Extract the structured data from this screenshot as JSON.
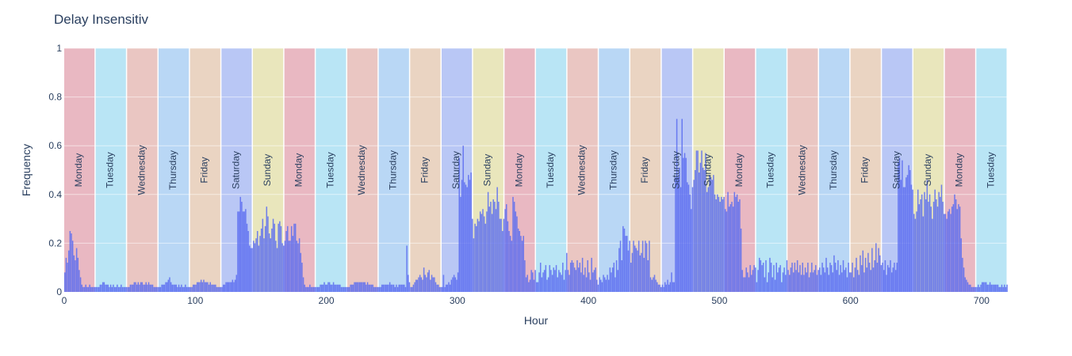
{
  "chart_data": {
    "type": "bar",
    "title": "Delay Insensitiv",
    "xlabel": "Hour",
    "ylabel": "Frequency",
    "xlim": [
      0,
      720
    ],
    "ylim": [
      0,
      1
    ],
    "x_ticks": [
      "0",
      "100",
      "200",
      "300",
      "400",
      "500",
      "600",
      "700"
    ],
    "x_tick_values": [
      0,
      100,
      200,
      300,
      400,
      500,
      600,
      700
    ],
    "y_ticks": [
      "0",
      "0.2",
      "0.4",
      "0.6",
      "0.8",
      "1"
    ],
    "y_tick_values": [
      0,
      0.2,
      0.4,
      0.6,
      0.8,
      1
    ],
    "grid": true,
    "day_bands": [
      {
        "label": "Monday",
        "start": 0,
        "end": 24,
        "color": "#e2a0ae"
      },
      {
        "label": "Tuesday",
        "start": 24,
        "end": 48,
        "color": "#a2dcf2"
      },
      {
        "label": "Wednesday",
        "start": 48,
        "end": 72,
        "color": "#e3b3ad"
      },
      {
        "label": "Thursday",
        "start": 72,
        "end": 96,
        "color": "#a2c9f2"
      },
      {
        "label": "Friday",
        "start": 96,
        "end": 120,
        "color": "#e3c6ad"
      },
      {
        "label": "Saturday",
        "start": 120,
        "end": 144,
        "color": "#a2b4f2"
      },
      {
        "label": "Sunday",
        "start": 144,
        "end": 168,
        "color": "#e2dda6"
      },
      {
        "label": "Monday",
        "start": 168,
        "end": 192,
        "color": "#e2a0ae"
      },
      {
        "label": "Tuesday",
        "start": 192,
        "end": 216,
        "color": "#a2dcf2"
      },
      {
        "label": "Wednesday",
        "start": 216,
        "end": 240,
        "color": "#e3b3ad"
      },
      {
        "label": "Thursday",
        "start": 240,
        "end": 264,
        "color": "#a2c9f2"
      },
      {
        "label": "Friday",
        "start": 264,
        "end": 288,
        "color": "#e3c6ad"
      },
      {
        "label": "Saturday",
        "start": 288,
        "end": 312,
        "color": "#a2b4f2"
      },
      {
        "label": "Sunday",
        "start": 312,
        "end": 336,
        "color": "#e2dda6"
      },
      {
        "label": "Monday",
        "start": 336,
        "end": 360,
        "color": "#e2a0ae"
      },
      {
        "label": "Tuesday",
        "start": 360,
        "end": 384,
        "color": "#a2dcf2"
      },
      {
        "label": "Wednesday",
        "start": 384,
        "end": 408,
        "color": "#e3b3ad"
      },
      {
        "label": "Thursday",
        "start": 408,
        "end": 432,
        "color": "#a2c9f2"
      },
      {
        "label": "Friday",
        "start": 432,
        "end": 456,
        "color": "#e3c6ad"
      },
      {
        "label": "Saturday",
        "start": 456,
        "end": 480,
        "color": "#a2b4f2"
      },
      {
        "label": "Sunday",
        "start": 480,
        "end": 504,
        "color": "#e2dda6"
      },
      {
        "label": "Monday",
        "start": 504,
        "end": 528,
        "color": "#e2a0ae"
      },
      {
        "label": "Tuesday",
        "start": 528,
        "end": 552,
        "color": "#a2dcf2"
      },
      {
        "label": "Wednesday",
        "start": 552,
        "end": 576,
        "color": "#e3b3ad"
      },
      {
        "label": "Thursday",
        "start": 576,
        "end": 600,
        "color": "#a2c9f2"
      },
      {
        "label": "Friday",
        "start": 600,
        "end": 624,
        "color": "#e3c6ad"
      },
      {
        "label": "Saturday",
        "start": 624,
        "end": 648,
        "color": "#a2b4f2"
      },
      {
        "label": "Sunday",
        "start": 648,
        "end": 672,
        "color": "#e2dda6"
      },
      {
        "label": "Monday",
        "start": 672,
        "end": 696,
        "color": "#e2a0ae"
      },
      {
        "label": "Tuesday",
        "start": 696,
        "end": 720,
        "color": "#a2dcf2"
      }
    ],
    "bar_color": "#5a6cf0",
    "series": [
      {
        "values": [
          0.08,
          0.14,
          0.12,
          0.17,
          0.25,
          0.24,
          0.21,
          0.15,
          0.13,
          0.18,
          0.14,
          0.09,
          0.06,
          0.03,
          0.02,
          0.02,
          0.03,
          0.02,
          0.02,
          0.03,
          0.02,
          0.02,
          0.02,
          0.02,
          0.02,
          0.02,
          0.02,
          0.03,
          0.03,
          0.04,
          0.04,
          0.03,
          0.03,
          0.03,
          0.02,
          0.03,
          0.02,
          0.03,
          0.02,
          0.02,
          0.03,
          0.02,
          0.02,
          0.03,
          0.02,
          0.02,
          0.02,
          0.02,
          0.02,
          0.02,
          0.03,
          0.03,
          0.03,
          0.04,
          0.04,
          0.03,
          0.04,
          0.03,
          0.04,
          0.04,
          0.03,
          0.03,
          0.04,
          0.03,
          0.04,
          0.03,
          0.03,
          0.03,
          0.02,
          0.02,
          0.02,
          0.02,
          0.02,
          0.02,
          0.03,
          0.03,
          0.03,
          0.04,
          0.04,
          0.05,
          0.06,
          0.04,
          0.03,
          0.03,
          0.03,
          0.03,
          0.02,
          0.03,
          0.02,
          0.03,
          0.02,
          0.02,
          0.03,
          0.02,
          0.02,
          0.02,
          0.02,
          0.02,
          0.03,
          0.03,
          0.03,
          0.04,
          0.04,
          0.04,
          0.05,
          0.04,
          0.05,
          0.04,
          0.04,
          0.04,
          0.03,
          0.04,
          0.03,
          0.03,
          0.03,
          0.03,
          0.02,
          0.02,
          0.02,
          0.02,
          0.02,
          0.03,
          0.03,
          0.04,
          0.04,
          0.04,
          0.04,
          0.04,
          0.05,
          0.04,
          0.05,
          0.07,
          0.33,
          0.33,
          0.39,
          0.37,
          0.33,
          0.33,
          0.34,
          0.28,
          0.25,
          0.19,
          0.18,
          0.18,
          0.21,
          0.2,
          0.22,
          0.25,
          0.19,
          0.23,
          0.26,
          0.3,
          0.22,
          0.27,
          0.35,
          0.31,
          0.24,
          0.22,
          0.26,
          0.3,
          0.28,
          0.21,
          0.18,
          0.28,
          0.29,
          0.27,
          0.2,
          0.19,
          0.21,
          0.25,
          0.27,
          0.21,
          0.21,
          0.27,
          0.23,
          0.28,
          0.28,
          0.21,
          0.2,
          0.22,
          0.16,
          0.12,
          0.06,
          0.03,
          0.02,
          0.02,
          0.02,
          0.03,
          0.02,
          0.02,
          0.02,
          0.02,
          0.02,
          0.02,
          0.02,
          0.03,
          0.03,
          0.03,
          0.04,
          0.03,
          0.03,
          0.04,
          0.04,
          0.03,
          0.03,
          0.04,
          0.03,
          0.03,
          0.03,
          0.03,
          0.03,
          0.02,
          0.02,
          0.02,
          0.02,
          0.02,
          0.02,
          0.02,
          0.03,
          0.03,
          0.03,
          0.04,
          0.04,
          0.04,
          0.04,
          0.04,
          0.04,
          0.04,
          0.04,
          0.04,
          0.03,
          0.04,
          0.03,
          0.03,
          0.03,
          0.03,
          0.02,
          0.02,
          0.02,
          0.02,
          0.02,
          0.02,
          0.03,
          0.03,
          0.03,
          0.03,
          0.03,
          0.03,
          0.04,
          0.03,
          0.03,
          0.03,
          0.02,
          0.03,
          0.02,
          0.03,
          0.03,
          0.03,
          0.03,
          0.03,
          0.02,
          0.19,
          0.07,
          0.04,
          0.02,
          0.02,
          0.03,
          0.04,
          0.05,
          0.05,
          0.06,
          0.07,
          0.06,
          0.05,
          0.1,
          0.07,
          0.06,
          0.08,
          0.09,
          0.05,
          0.07,
          0.06,
          0.06,
          0.04,
          0.03,
          0.03,
          0.02,
          0.02,
          0.02,
          0.07,
          0.02,
          0.03,
          0.03,
          0.04,
          0.03,
          0.05,
          0.06,
          0.07,
          0.06,
          0.05,
          0.08,
          0.55,
          0.39,
          0.46,
          0.6,
          0.45,
          0.44,
          0.43,
          0.48,
          0.46,
          0.49,
          0.3,
          0.22,
          0.28,
          0.27,
          0.3,
          0.29,
          0.33,
          0.32,
          0.34,
          0.31,
          0.28,
          0.33,
          0.41,
          0.35,
          0.37,
          0.32,
          0.38,
          0.37,
          0.34,
          0.43,
          0.37,
          0.3,
          0.3,
          0.25,
          0.3,
          0.34,
          0.36,
          0.29,
          0.25,
          0.23,
          0.21,
          0.39,
          0.37,
          0.33,
          0.31,
          0.26,
          0.25,
          0.23,
          0.21,
          0.23,
          0.13,
          0.06,
          0.07,
          0.04,
          0.05,
          0.09,
          0.08,
          0.05,
          0.09,
          0.04,
          0.04,
          0.08,
          0.12,
          0.06,
          0.08,
          0.09,
          0.11,
          0.05,
          0.06,
          0.11,
          0.09,
          0.07,
          0.1,
          0.09,
          0.11,
          0.06,
          0.09,
          0.08,
          0.07,
          0.12,
          0.05,
          0.09,
          0.16,
          0.09,
          0.07,
          0.12,
          0.13,
          0.12,
          0.1,
          0.09,
          0.13,
          0.1,
          0.12,
          0.08,
          0.14,
          0.07,
          0.1,
          0.06,
          0.13,
          0.08,
          0.05,
          0.14,
          0.08,
          0.09,
          0.1,
          0.05,
          0.03,
          0.06,
          0.05,
          0.04,
          0.07,
          0.06,
          0.05,
          0.07,
          0.05,
          0.1,
          0.08,
          0.1,
          0.12,
          0.06,
          0.13,
          0.09,
          0.18,
          0.21,
          0.13,
          0.27,
          0.26,
          0.23,
          0.23,
          0.17,
          0.21,
          0.12,
          0.16,
          0.21,
          0.19,
          0.18,
          0.17,
          0.21,
          0.15,
          0.16,
          0.21,
          0.14,
          0.21,
          0.2,
          0.13,
          0.21,
          0.06,
          0.05,
          0.06,
          0.07,
          0.05,
          0.04,
          0.03,
          0.03,
          0.02,
          0.03,
          0.02,
          0.04,
          0.03,
          0.05,
          0.03,
          0.04,
          0.08,
          0.04,
          0.04,
          0.47,
          0.71,
          0.47,
          0.51,
          0.43,
          0.71,
          0.55,
          0.57,
          0.55,
          0.45,
          0.44,
          0.4,
          0.34,
          0.43,
          0.46,
          0.5,
          0.58,
          0.58,
          0.49,
          0.53,
          0.58,
          0.51,
          0.5,
          0.57,
          0.41,
          0.43,
          0.48,
          0.47,
          0.46,
          0.48,
          0.4,
          0.38,
          0.4,
          0.39,
          0.37,
          0.39,
          0.38,
          0.39,
          0.34,
          0.33,
          0.41,
          0.35,
          0.36,
          0.37,
          0.35,
          0.41,
          0.39,
          0.4,
          0.37,
          0.38,
          0.26,
          0.09,
          0.06,
          0.06,
          0.1,
          0.08,
          0.06,
          0.11,
          0.07,
          0.09,
          0.11,
          0.1,
          0.04,
          0.09,
          0.14,
          0.13,
          0.11,
          0.12,
          0.06,
          0.13,
          0.04,
          0.08,
          0.14,
          0.12,
          0.06,
          0.11,
          0.05,
          0.12,
          0.08,
          0.1,
          0.11,
          0.04,
          0.08,
          0.1,
          0.07,
          0.13,
          0.09,
          0.07,
          0.1,
          0.12,
          0.08,
          0.12,
          0.09,
          0.13,
          0.08,
          0.11,
          0.07,
          0.12,
          0.07,
          0.1,
          0.08,
          0.12,
          0.06,
          0.08,
          0.12,
          0.08,
          0.09,
          0.11,
          0.07,
          0.09,
          0.1,
          0.07,
          0.12,
          0.1,
          0.08,
          0.14,
          0.1,
          0.07,
          0.12,
          0.11,
          0.08,
          0.15,
          0.12,
          0.09,
          0.13,
          0.07,
          0.11,
          0.08,
          0.13,
          0.09,
          0.1,
          0.06,
          0.12,
          0.08,
          0.08,
          0.12,
          0.06,
          0.1,
          0.14,
          0.09,
          0.07,
          0.15,
          0.11,
          0.17,
          0.08,
          0.14,
          0.1,
          0.16,
          0.12,
          0.09,
          0.18,
          0.1,
          0.13,
          0.2,
          0.12,
          0.18,
          0.15,
          0.11,
          0.12,
          0.09,
          0.13,
          0.07,
          0.11,
          0.1,
          0.13,
          0.08,
          0.1,
          0.12,
          0.09,
          0.12,
          0.53,
          0.55,
          0.46,
          0.54,
          0.43,
          0.43,
          0.47,
          0.48,
          0.52,
          0.5,
          0.44,
          0.42,
          0.32,
          0.3,
          0.33,
          0.42,
          0.36,
          0.38,
          0.4,
          0.31,
          0.41,
          0.38,
          0.46,
          0.37,
          0.4,
          0.35,
          0.3,
          0.37,
          0.42,
          0.38,
          0.35,
          0.41,
          0.39,
          0.44,
          0.37,
          0.32,
          0.32,
          0.3,
          0.33,
          0.34,
          0.32,
          0.35,
          0.36,
          0.4,
          0.38,
          0.34,
          0.36,
          0.35,
          0.22,
          0.14,
          0.1,
          0.06,
          0.05,
          0.04,
          0.03,
          0.03,
          0.02,
          0.02,
          0.02,
          0.02,
          0.02,
          0.03,
          0.02,
          0.03,
          0.04,
          0.04,
          0.04,
          0.04,
          0.03,
          0.03,
          0.04,
          0.03,
          0.03,
          0.03,
          0.03,
          0.03,
          0.03,
          0.02,
          0.02,
          0.03,
          0.02,
          0.03,
          0.02,
          0.03
        ]
      }
    ]
  }
}
